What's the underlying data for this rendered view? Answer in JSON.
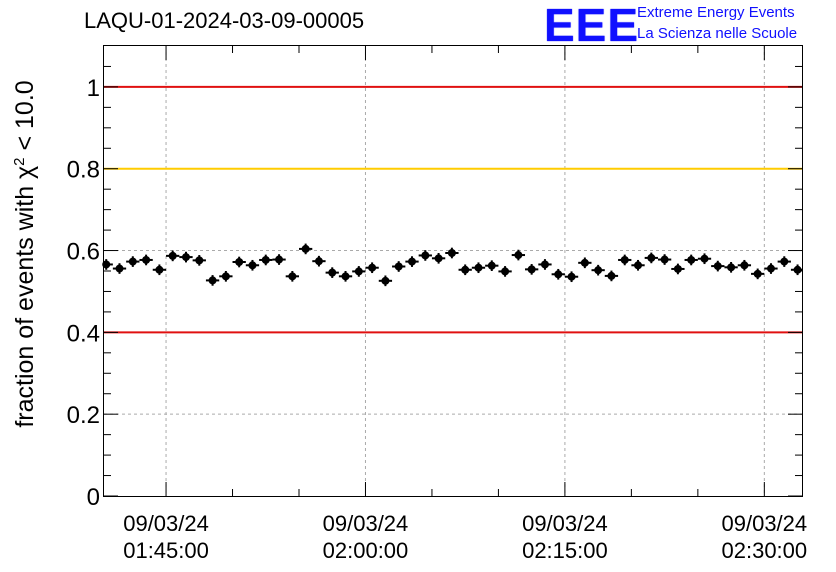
{
  "header": {
    "title": "LAQU-01-2024-03-09-00005",
    "logo": "EEE",
    "logo_line1": "Extreme Energy Events",
    "logo_line2": "La Scienza nelle Scuole"
  },
  "colors": {
    "red_line": "#e01010",
    "yellow_line": "#ffcc00",
    "marker": "#000000",
    "grid": "#aaaaaa",
    "logo": "#1010ff"
  },
  "chart_data": {
    "type": "scatter",
    "ylabel": "fraction of events with χ² < 10.0",
    "ylabel_main": "fraction of events with χ",
    "ylabel_sup": "2",
    "ylabel_tail": " < 10.0",
    "ylim": [
      0,
      1.1
    ],
    "yticks": [
      0,
      0.2,
      0.4,
      0.6,
      0.8,
      1
    ],
    "ytick_labels": [
      "0",
      "0.2",
      "0.4",
      "0.6",
      "0.8",
      "1"
    ],
    "xlim": [
      "2024-03-09 01:40:20",
      "2024-03-09 02:32:50"
    ],
    "xticks": [
      "2024-03-09 01:45:00",
      "2024-03-09 02:00:00",
      "2024-03-09 02:15:00",
      "2024-03-09 02:30:00"
    ],
    "xtick_labels": [
      {
        "date": "09/03/24",
        "time": "01:45:00"
      },
      {
        "date": "09/03/24",
        "time": "02:00:00"
      },
      {
        "date": "09/03/24",
        "time": "02:15:00"
      },
      {
        "date": "09/03/24",
        "time": "02:30:00"
      }
    ],
    "grid": true,
    "reference_lines": [
      {
        "y": 1.0,
        "color": "red"
      },
      {
        "y": 0.8,
        "color": "yellow"
      },
      {
        "y": 0.4,
        "color": "red"
      }
    ],
    "x": [
      "01:40:30",
      "01:41:30",
      "01:42:30",
      "01:43:30",
      "01:44:30",
      "01:45:30",
      "01:46:30",
      "01:47:30",
      "01:48:30",
      "01:49:30",
      "01:50:30",
      "01:51:30",
      "01:52:30",
      "01:53:30",
      "01:54:30",
      "01:55:30",
      "01:56:30",
      "01:57:30",
      "01:58:30",
      "01:59:30",
      "02:00:30",
      "02:01:30",
      "02:02:30",
      "02:03:30",
      "02:04:30",
      "02:05:30",
      "02:06:30",
      "02:07:30",
      "02:08:30",
      "02:09:30",
      "02:10:30",
      "02:11:30",
      "02:12:30",
      "02:13:30",
      "02:14:30",
      "02:15:30",
      "02:16:30",
      "02:17:30",
      "02:18:30",
      "02:19:30",
      "02:20:30",
      "02:21:30",
      "02:22:30",
      "02:23:30",
      "02:24:30",
      "02:25:30",
      "02:26:30",
      "02:27:30",
      "02:28:30",
      "02:29:30",
      "02:30:30",
      "02:31:30",
      "02:32:30"
    ],
    "y": [
      0.566,
      0.556,
      0.573,
      0.577,
      0.553,
      0.587,
      0.584,
      0.576,
      0.527,
      0.537,
      0.572,
      0.564,
      0.577,
      0.578,
      0.537,
      0.604,
      0.574,
      0.546,
      0.537,
      0.549,
      0.558,
      0.526,
      0.561,
      0.573,
      0.588,
      0.581,
      0.594,
      0.553,
      0.558,
      0.563,
      0.549,
      0.589,
      0.554,
      0.566,
      0.542,
      0.536,
      0.57,
      0.552,
      0.538,
      0.577,
      0.564,
      0.582,
      0.578,
      0.555,
      0.577,
      0.58,
      0.562,
      0.559,
      0.564,
      0.543,
      0.556,
      0.573,
      0.553
    ],
    "yerr": 0.013,
    "xerr_min": 0.5
  }
}
